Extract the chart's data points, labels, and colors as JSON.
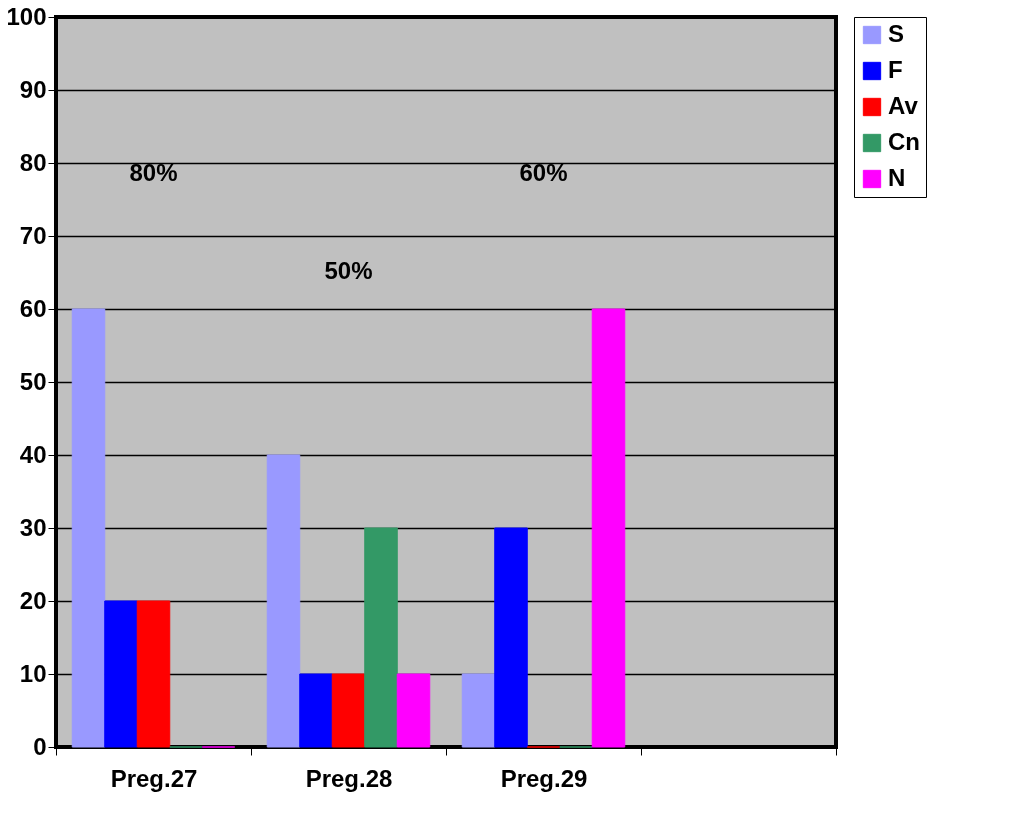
{
  "chart_data": {
    "type": "bar",
    "categories": [
      "Preg.27",
      "Preg.28",
      "Preg.29",
      null
    ],
    "series": [
      {
        "name": "S",
        "color": "#9999ff",
        "values": [
          60,
          40,
          10,
          null
        ]
      },
      {
        "name": "F",
        "color": "#0000ff",
        "values": [
          20,
          10,
          30,
          null
        ]
      },
      {
        "name": "Av",
        "color": "#ff0000",
        "values": [
          20,
          10,
          0,
          null
        ]
      },
      {
        "name": "Cn",
        "color": "#339966",
        "values": [
          0,
          30,
          0,
          null
        ]
      },
      {
        "name": "N",
        "color": "#ff00ff",
        "values": [
          0,
          10,
          60,
          null
        ]
      }
    ],
    "ylim": [
      0,
      100
    ],
    "yticks": [
      0,
      10,
      20,
      30,
      40,
      50,
      60,
      70,
      80,
      90,
      100
    ],
    "grid": "y",
    "legend": "right",
    "annotations": [
      "80%",
      "50%",
      "60%"
    ]
  }
}
